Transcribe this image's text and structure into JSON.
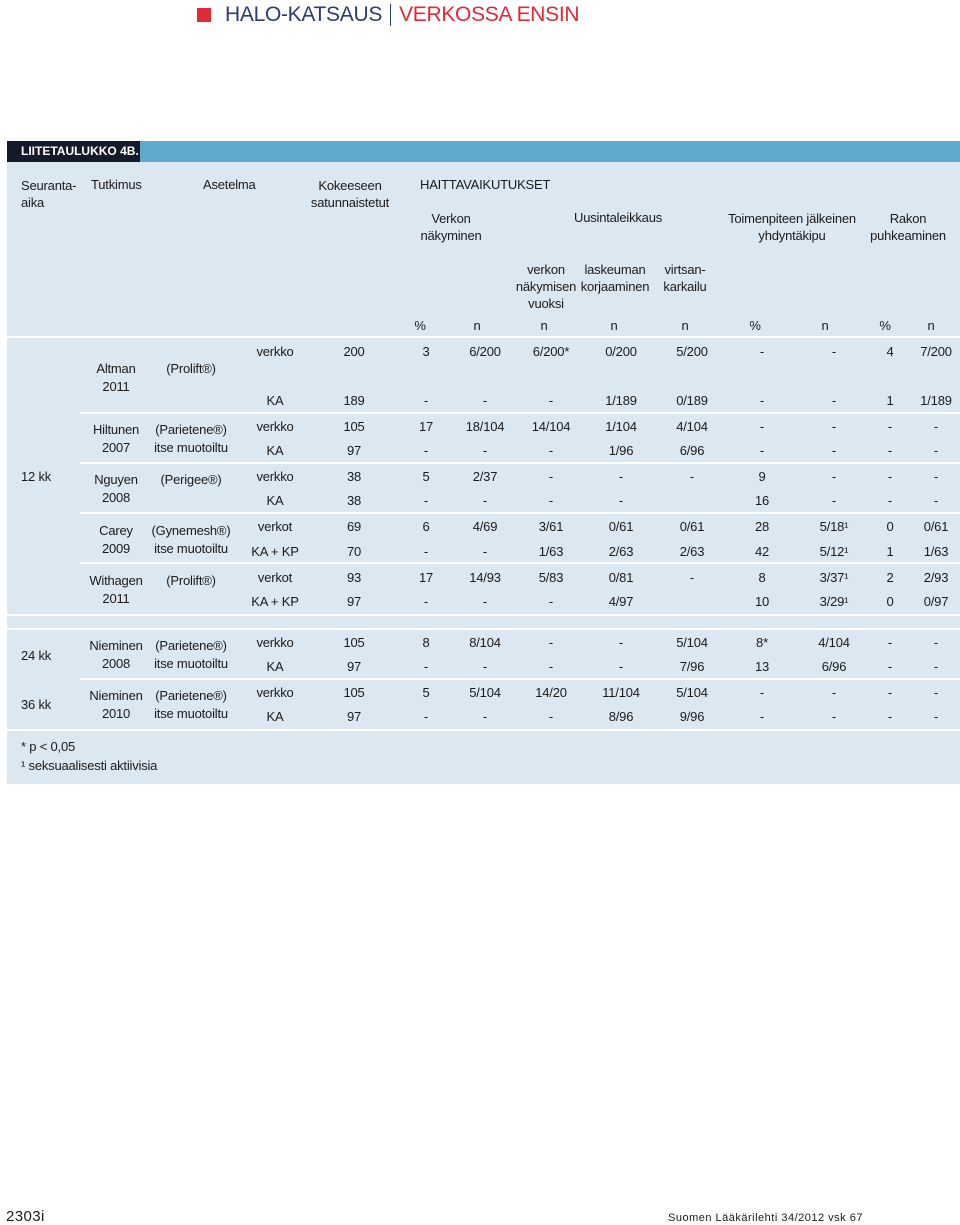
{
  "header": {
    "left": "HALO-KATSAUS",
    "right": "VERKOSSA ENSIN"
  },
  "table_label": "LIITETAULUKKO 4B.",
  "head": {
    "followup": "Seuranta-\naika",
    "study": "Tutkimus",
    "setting": "Asetelma",
    "randomized": "Kokeeseen\nsatunnaistetut",
    "adverse": "HAITTAVAIKUTUKSET",
    "mesh_visible": "Verkon\nnäkyminen",
    "reoperation": "Uusintaleikkaus",
    "postop_pain": "Toimenpiteen jälkeinen\nyhdyntäkipu",
    "vaginal_tear": "Rakon\npuhkeaminen",
    "sub_mesh": "verkon\nnäkymisen\nvuoksi",
    "sub_prolapse": "laskeuman\nkorjaaminen",
    "sub_incont": "virtsan-\nkarkailu",
    "units": [
      "%",
      "n",
      "n",
      "n",
      "n",
      "%",
      "n",
      "%",
      "n"
    ]
  },
  "groups": [
    {
      "label": "12 kk"
    },
    {
      "label": "24 kk"
    },
    {
      "label": "36 kk"
    }
  ],
  "studies": [
    {
      "name": "Altman\n2011",
      "setting": "(Prolift®)"
    },
    {
      "name": "Hiltunen\n2007",
      "setting": "(Parietene®)\nitse muotoiltu"
    },
    {
      "name": "Nguyen\n2008",
      "setting": "(Perigee®)"
    },
    {
      "name": "Carey\n2009",
      "setting": "(Gynemesh®)\nitse muotoiltu"
    },
    {
      "name": "Withagen\n2011",
      "setting": "(Prolift®)"
    },
    {
      "name": "Nieminen\n2008",
      "setting": "(Parietene®)\nitse muotoiltu"
    },
    {
      "name": "Nieminen\n2010",
      "setting": "(Parietene®)\nitse muotoiltu"
    }
  ],
  "rows": [
    [
      "verkko",
      "200",
      "3",
      "6/200",
      "6/200*",
      "0/200",
      "5/200",
      "-",
      "-",
      "4",
      "7/200"
    ],
    [
      "KA",
      "189",
      "-",
      "-",
      "-",
      "1/189",
      "0/189",
      "-",
      "-",
      "1",
      "1/189"
    ],
    [
      "verkko",
      "105",
      "17",
      "18/104",
      "14/104",
      "1/104",
      "4/104",
      "-",
      "-",
      "-",
      "-"
    ],
    [
      "KA",
      "97",
      "-",
      "-",
      "-",
      "1/96",
      "6/96",
      "-",
      "-",
      "-",
      "-"
    ],
    [
      "verkko",
      "38",
      "5",
      "2/37",
      "-",
      "-",
      "-",
      "9",
      "-",
      "-",
      "-"
    ],
    [
      "KA",
      "38",
      "-",
      "-",
      "-",
      "-",
      "",
      "16",
      "-",
      "-",
      "-"
    ],
    [
      "verkot",
      "69",
      "6",
      "4/69",
      "3/61",
      "0/61",
      "0/61",
      "28",
      "5/18¹",
      "0",
      "0/61"
    ],
    [
      "KA + KP",
      "70",
      "-",
      "-",
      "1/63",
      "2/63",
      "2/63",
      "42",
      "5/12¹",
      "1",
      "1/63"
    ],
    [
      "verkot",
      "93",
      "17",
      "14/93",
      "5/83",
      "0/81",
      "-",
      "8",
      "3/37¹",
      "2",
      "2/93"
    ],
    [
      "KA + KP",
      "97",
      "-",
      "-",
      "-",
      "4/97",
      "",
      "10",
      "3/29¹",
      "0",
      "0/97"
    ],
    [
      "verkko",
      "105",
      "8",
      "8/104",
      "-",
      "-",
      "5/104",
      "8*",
      "4/104",
      "-",
      "-"
    ],
    [
      "KA",
      "97",
      "-",
      "-",
      "-",
      "-",
      "7/96",
      "13",
      "6/96",
      "-",
      "-"
    ],
    [
      "verkko",
      "105",
      "5",
      "5/104",
      "14/20",
      "11/104",
      "5/104",
      "-",
      "-",
      "-",
      "-"
    ],
    [
      "KA",
      "97",
      "-",
      "-",
      "-",
      "8/96",
      "9/96",
      "-",
      "-",
      "-",
      "-"
    ]
  ],
  "notes": [
    "* p < 0,05",
    "¹ seksuaalisesti aktiivisia"
  ],
  "footer": {
    "page": "2303i",
    "journal": "Suomen Lääkärilehti 34/2012 vsk 67"
  }
}
